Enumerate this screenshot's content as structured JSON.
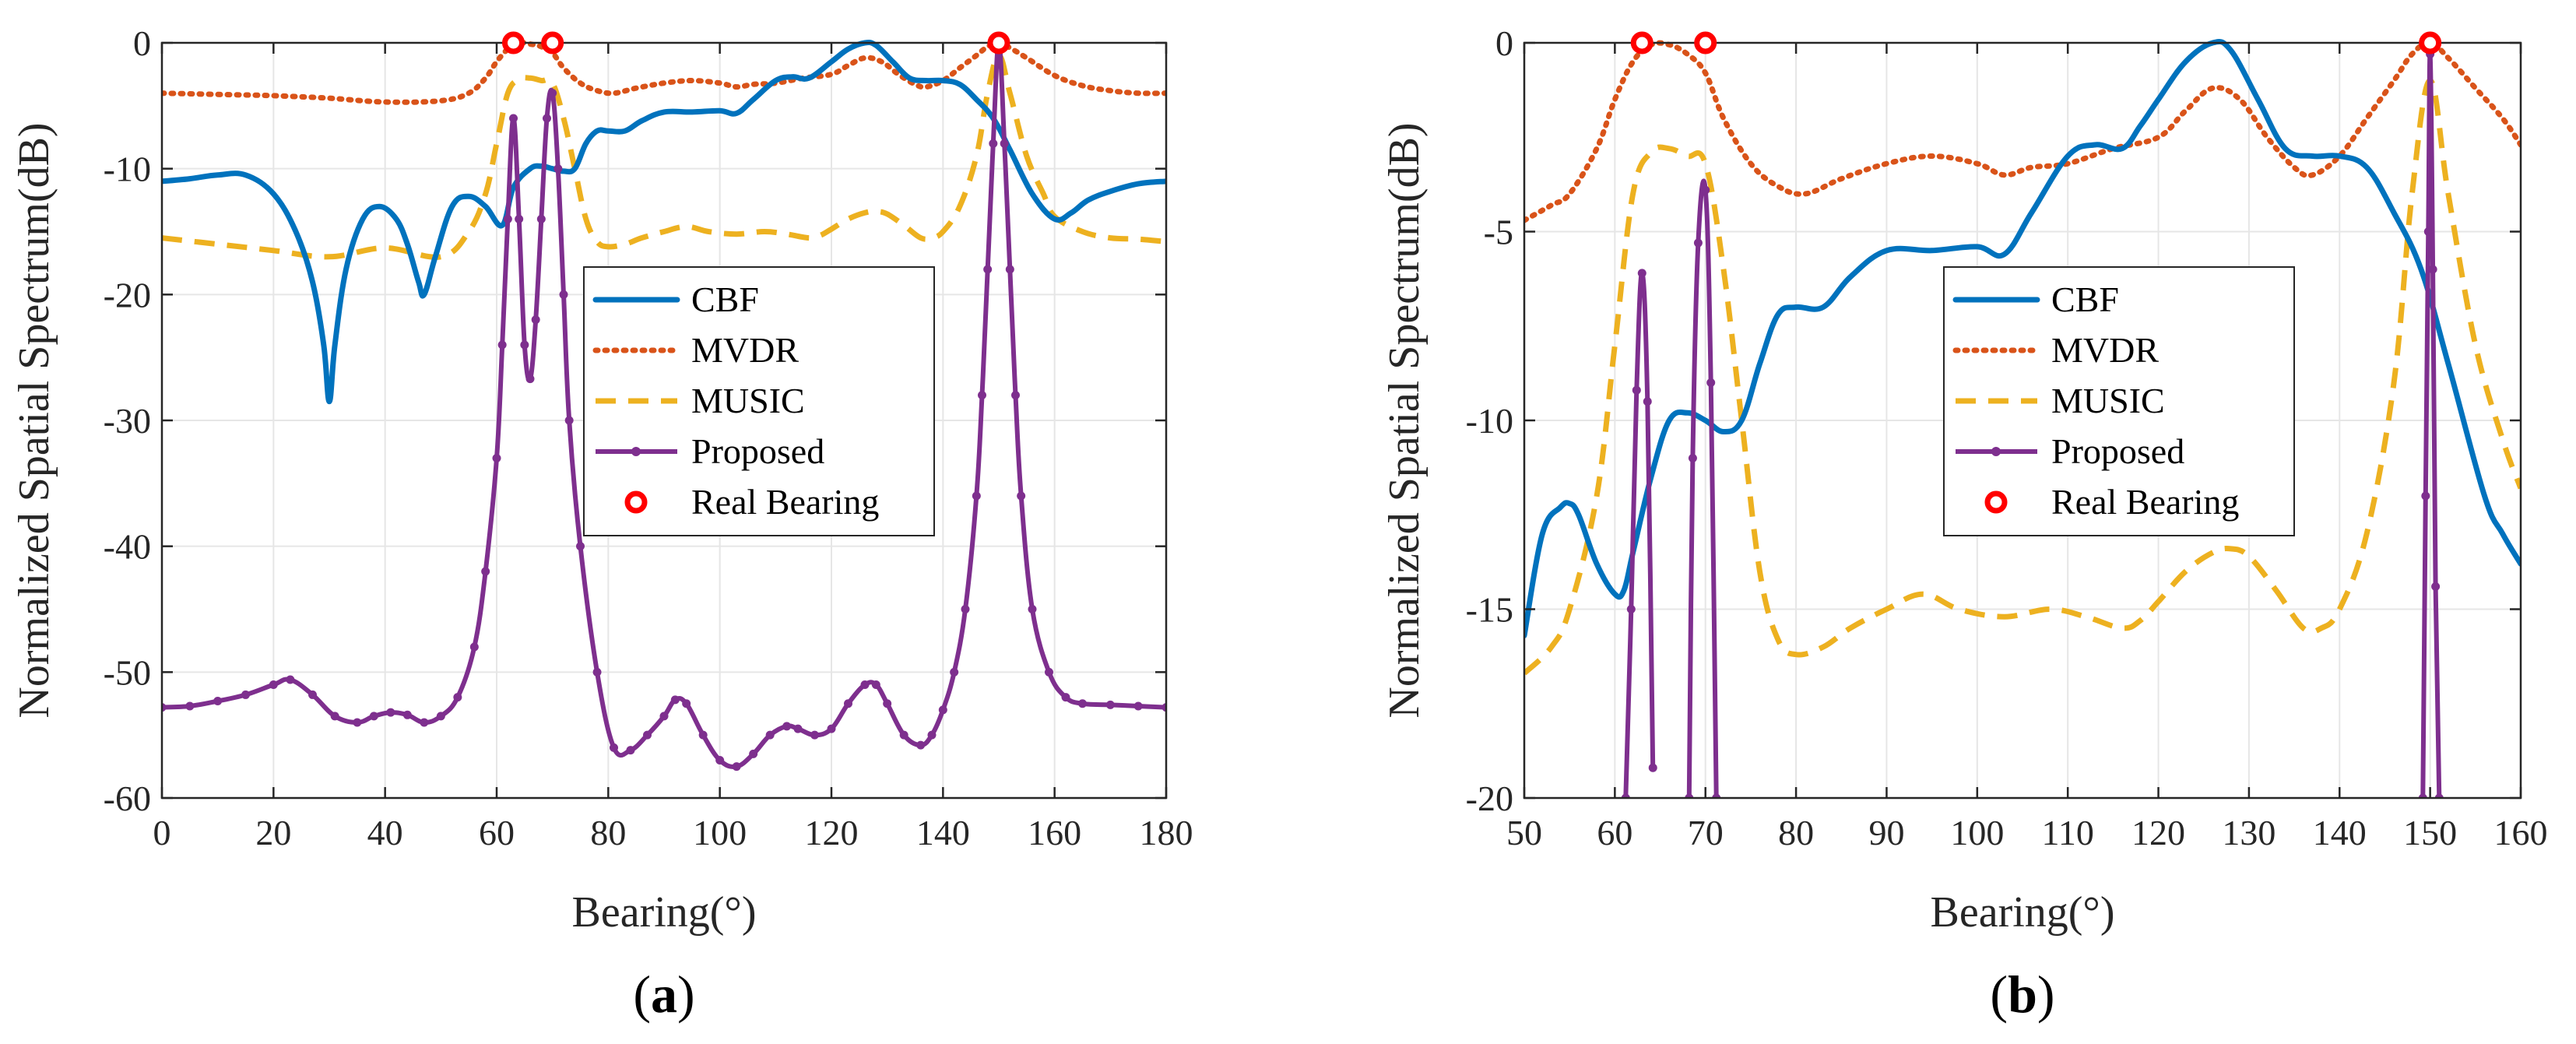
{
  "colors": {
    "cbf": "#0072BD",
    "mvdr": "#D95319",
    "music": "#EDB120",
    "proposed": "#7E2F8E",
    "real": "#FF0000",
    "grid": "#e6e6e6",
    "axis": "#262626"
  },
  "chart_data": [
    {
      "id": "a",
      "type": "line",
      "panel_label": "a",
      "panel_label_open": "(",
      "panel_label_close": ")",
      "xlabel": "Bearing(°)",
      "ylabel": "Normalized Spatial Spectrum(dB)",
      "xlim": [
        0,
        180
      ],
      "ylim": [
        -60,
        0
      ],
      "xticks": [
        0,
        20,
        40,
        60,
        80,
        100,
        120,
        140,
        160,
        180
      ],
      "yticks": [
        0,
        -10,
        -20,
        -30,
        -40,
        -50,
        -60
      ],
      "grid": true,
      "legend_position": "center-right",
      "series": [
        {
          "name": "CBF",
          "style": "solid",
          "x": [
            0,
            5,
            10,
            15,
            20,
            24,
            27,
            29,
            30,
            31,
            33,
            36,
            39,
            42,
            44,
            46,
            47,
            49,
            52,
            55,
            58,
            61,
            63,
            66,
            68,
            70,
            72,
            74,
            76,
            78,
            80,
            83,
            86,
            90,
            95,
            100,
            103,
            106,
            110,
            113,
            116,
            120,
            123,
            126,
            128,
            131,
            134,
            137,
            140,
            143,
            146,
            149,
            152,
            156,
            160,
            163,
            166,
            170,
            175,
            180
          ],
          "y": [
            -11,
            -10.8,
            -10.5,
            -10.5,
            -12,
            -15,
            -19,
            -24,
            -28.5,
            -24,
            -18,
            -14,
            -13,
            -14,
            -16,
            -19,
            -20,
            -17,
            -13,
            -12.2,
            -13,
            -14.5,
            -11.5,
            -10,
            -9.8,
            -10,
            -10.2,
            -10,
            -8,
            -7,
            -7,
            -7,
            -6.2,
            -5.5,
            -5.5,
            -5.4,
            -5.6,
            -4.5,
            -3,
            -2.7,
            -2.8,
            -1.5,
            -0.5,
            0,
            -0.2,
            -1.5,
            -2.8,
            -3,
            -3,
            -3.3,
            -4.5,
            -6,
            -8.5,
            -12,
            -14,
            -13.5,
            -12.5,
            -11.8,
            -11.2,
            -11
          ]
        },
        {
          "name": "MVDR",
          "style": "dotted",
          "x": [
            0,
            10,
            20,
            30,
            40,
            50,
            55,
            58,
            60,
            62,
            64,
            66,
            68,
            70,
            72,
            75,
            78,
            81,
            85,
            90,
            95,
            100,
            103,
            106,
            110,
            115,
            120,
            123,
            126,
            129,
            132,
            135,
            137,
            140,
            143,
            146,
            148,
            150,
            152,
            155,
            160,
            165,
            170,
            175,
            180
          ],
          "y": [
            -4,
            -4.1,
            -4.2,
            -4.4,
            -4.7,
            -4.6,
            -4,
            -2.8,
            -1.5,
            -0.5,
            0,
            -0.1,
            -0.3,
            -0.8,
            -2,
            -3.2,
            -3.8,
            -4,
            -3.6,
            -3.2,
            -3,
            -3.2,
            -3.5,
            -3.3,
            -3.2,
            -2.8,
            -2.5,
            -1.8,
            -1.2,
            -1.5,
            -2.5,
            -3.3,
            -3.5,
            -3,
            -2,
            -1,
            -0.3,
            0,
            -0.4,
            -1.2,
            -2.6,
            -3.4,
            -3.8,
            -4,
            -4
          ]
        },
        {
          "name": "MUSIC",
          "style": "dashed",
          "x": [
            0,
            10,
            20,
            30,
            40,
            50,
            55,
            58,
            60,
            62,
            64,
            66,
            68,
            70,
            72,
            74,
            76,
            78,
            80,
            83,
            86,
            90,
            94,
            98,
            103,
            108,
            112,
            116,
            118,
            120,
            123,
            126,
            128,
            130,
            133,
            136,
            138,
            140,
            143,
            146,
            148,
            150,
            152,
            155,
            158,
            160,
            165,
            170,
            175,
            180
          ],
          "y": [
            -15.5,
            -16,
            -16.5,
            -17,
            -16.3,
            -17,
            -15,
            -12,
            -8,
            -4,
            -2.9,
            -2.8,
            -3,
            -3.2,
            -6,
            -10,
            -14,
            -15.8,
            -16.2,
            -16,
            -15.5,
            -15,
            -14.6,
            -15,
            -15.2,
            -15,
            -15.2,
            -15.5,
            -15.3,
            -14.8,
            -14,
            -13.5,
            -13.4,
            -13.6,
            -14.5,
            -15.5,
            -15.5,
            -15,
            -13,
            -9,
            -4,
            -1,
            -4,
            -9,
            -12,
            -13.8,
            -15,
            -15.5,
            -15.6,
            -15.8
          ]
        },
        {
          "name": "Proposed",
          "style": "solid-marker",
          "x": [
            0,
            5,
            10,
            15,
            20,
            23,
            27,
            31,
            35,
            38,
            41,
            44,
            47,
            50,
            53,
            56,
            58,
            60,
            61,
            62,
            63,
            64,
            65,
            66,
            67,
            68,
            69,
            70,
            71,
            72,
            73,
            75,
            78,
            81,
            84,
            87,
            90,
            92,
            94,
            97,
            100,
            103,
            106,
            109,
            112,
            114,
            117,
            120,
            123,
            126,
            128,
            130,
            133,
            136,
            138,
            140,
            142,
            144,
            146,
            147,
            148,
            149,
            150,
            151,
            152,
            153,
            154,
            156,
            159,
            162,
            165,
            170,
            175,
            180
          ],
          "y": [
            -52.8,
            -52.7,
            -52.3,
            -51.8,
            -51,
            -50.6,
            -51.8,
            -53.5,
            -54,
            -53.5,
            -53.2,
            -53.4,
            -54,
            -53.5,
            -52,
            -48,
            -42,
            -33,
            -24,
            -14,
            -6,
            -14,
            -24,
            -26.7,
            -22,
            -14,
            -6,
            -4,
            -10,
            -20,
            -30,
            -40,
            -50,
            -56,
            -56.2,
            -55,
            -53.5,
            -52.2,
            -52.5,
            -55,
            -57,
            -57.5,
            -56.5,
            -55,
            -54.3,
            -54.5,
            -55,
            -54.5,
            -52.5,
            -51,
            -51,
            -52.5,
            -55,
            -55.8,
            -55,
            -53,
            -50,
            -45,
            -36,
            -28,
            -18,
            -8,
            0,
            -8,
            -18,
            -28,
            -36,
            -45,
            -50,
            -52,
            -52.5,
            -52.6,
            -52.7,
            -52.8
          ]
        }
      ],
      "real_bearing": {
        "name": "Real Bearing",
        "x": [
          63,
          70,
          150
        ],
        "y": [
          0,
          0,
          0
        ]
      }
    },
    {
      "id": "b",
      "type": "line",
      "panel_label": "b",
      "panel_label_open": "(",
      "panel_label_close": ")",
      "xlabel": "Bearing(°)",
      "ylabel": "Normalized Spatial Spectrum(dB)",
      "xlim": [
        50,
        160
      ],
      "ylim": [
        -20,
        0
      ],
      "xticks": [
        50,
        60,
        70,
        80,
        90,
        100,
        110,
        120,
        130,
        140,
        150,
        160
      ],
      "yticks": [
        0,
        -5,
        -10,
        -15,
        -20
      ],
      "grid": true,
      "legend_position": "center-right",
      "series": [
        {
          "name": "CBF",
          "style": "solid",
          "x": [
            50,
            52,
            54,
            55,
            56,
            58,
            60,
            61,
            62,
            64,
            66,
            68,
            70,
            72,
            74,
            76,
            78,
            80,
            83,
            86,
            90,
            95,
            100,
            103,
            106,
            110,
            113,
            116,
            118,
            120,
            123,
            126,
            128,
            131,
            134,
            137,
            140,
            143,
            146,
            149,
            152,
            156,
            158,
            160
          ],
          "y": [
            -15.7,
            -13,
            -12.3,
            -12.2,
            -12.5,
            -13.8,
            -14.6,
            -14.5,
            -13.5,
            -11.5,
            -10,
            -9.8,
            -10,
            -10.3,
            -10,
            -8.5,
            -7.2,
            -7,
            -7,
            -6.2,
            -5.5,
            -5.5,
            -5.4,
            -5.6,
            -4.5,
            -3,
            -2.7,
            -2.8,
            -2.2,
            -1.5,
            -0.5,
            0,
            -0.2,
            -1.5,
            -2.8,
            -3,
            -3,
            -3.3,
            -4.5,
            -6,
            -8.5,
            -12,
            -13,
            -13.8
          ]
        },
        {
          "name": "MVDR",
          "style": "dotted",
          "x": [
            50,
            53,
            55,
            58,
            60,
            62,
            64,
            66,
            68,
            70,
            72,
            75,
            78,
            81,
            85,
            90,
            95,
            100,
            103,
            106,
            110,
            115,
            120,
            123,
            126,
            129,
            132,
            135,
            137,
            140,
            143,
            146,
            148,
            150,
            152,
            155,
            158,
            160
          ],
          "y": [
            -4.7,
            -4.3,
            -4,
            -2.8,
            -1.5,
            -0.5,
            -0.05,
            -0.05,
            -0.3,
            -0.8,
            -2,
            -3.2,
            -3.8,
            -4,
            -3.6,
            -3.2,
            -3,
            -3.2,
            -3.5,
            -3.3,
            -3.2,
            -2.8,
            -2.5,
            -1.8,
            -1.2,
            -1.5,
            -2.5,
            -3.3,
            -3.5,
            -3,
            -2,
            -1,
            -0.3,
            0,
            -0.4,
            -1.2,
            -2,
            -2.7
          ]
        },
        {
          "name": "MUSIC",
          "style": "dashed",
          "x": [
            50,
            53,
            55,
            58,
            60,
            62,
            64,
            66,
            68,
            70,
            72,
            74,
            76,
            78,
            80,
            83,
            86,
            90,
            94,
            98,
            103,
            108,
            112,
            116,
            118,
            120,
            123,
            126,
            128,
            130,
            133,
            136,
            138,
            140,
            143,
            146,
            148,
            150,
            152,
            155,
            158,
            160
          ],
          "y": [
            -16.7,
            -16,
            -15,
            -12,
            -8,
            -4,
            -2.9,
            -2.8,
            -3,
            -3.2,
            -6,
            -10,
            -14,
            -15.8,
            -16.2,
            -16,
            -15.5,
            -15,
            -14.6,
            -15,
            -15.2,
            -15,
            -15.2,
            -15.5,
            -15.3,
            -14.8,
            -14,
            -13.5,
            -13.4,
            -13.6,
            -14.5,
            -15.5,
            -15.5,
            -15,
            -13,
            -9,
            -4,
            -1,
            -4,
            -8,
            -10.5,
            -11.8
          ]
        },
        {
          "name": "Proposed",
          "style": "solid-marker",
          "segments": [
            {
              "x": [
                61.2,
                61.8,
                62.4,
                63,
                63.6,
                64.2
              ],
              "y": [
                -20,
                -15,
                -9.2,
                -6.1,
                -9.5,
                -19.2
              ]
            },
            {
              "x": [
                68.2,
                68.6,
                69.2,
                70,
                70.6,
                71.2
              ],
              "y": [
                -20,
                -11,
                -5.3,
                -3.9,
                -9,
                -20
              ]
            },
            {
              "x": [
                149.2,
                149.5,
                149.8,
                150,
                150.3,
                150.6,
                151
              ],
              "y": [
                -20,
                -12,
                -5,
                -0.3,
                -6,
                -14.4,
                -20
              ]
            }
          ]
        }
      ],
      "real_bearing": {
        "name": "Real Bearing",
        "x": [
          63,
          70,
          150
        ],
        "y": [
          0,
          0,
          0
        ]
      }
    }
  ]
}
